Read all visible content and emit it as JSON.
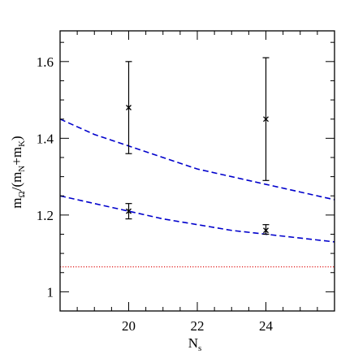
{
  "chart_data": {
    "type": "scatter",
    "title": "",
    "xlabel": {
      "main": "N",
      "sub": "s"
    },
    "ylabel": {
      "prefix": "m",
      "sub_q": "Ω",
      "mid": "/(m",
      "sub_n": "N",
      "plus": "+m",
      "sub_k": "K",
      "suffix": ")"
    },
    "xlim": [
      18,
      26
    ],
    "ylim": [
      0.95,
      1.68
    ],
    "xticks_major": [
      20,
      22,
      24
    ],
    "xticks_minor_step": 0.5,
    "yticks_major": [
      1.0,
      1.2,
      1.4,
      1.6
    ],
    "ytick_labels": [
      "1",
      "1.2",
      "1.4",
      "1.6"
    ],
    "yticks_minor_step": 0.05,
    "grid": false,
    "series": [
      {
        "marker": "x",
        "color": "#000000",
        "points": [
          {
            "x": 20,
            "y": 1.48,
            "ylow": 1.36,
            "yhigh": 1.6
          },
          {
            "x": 24,
            "y": 1.45,
            "ylow": 1.29,
            "yhigh": 1.61
          },
          {
            "x": 20,
            "y": 1.21,
            "ylow": 1.19,
            "yhigh": 1.23
          },
          {
            "x": 24,
            "y": 1.16,
            "ylow": 1.15,
            "yhigh": 1.175
          }
        ]
      }
    ],
    "curves": [
      {
        "style": "dashed",
        "color": "#0000cc",
        "x": [
          18,
          19,
          20,
          21,
          22,
          23,
          24,
          25,
          26
        ],
        "y": [
          1.45,
          1.41,
          1.38,
          1.35,
          1.32,
          1.3,
          1.28,
          1.26,
          1.24
        ]
      },
      {
        "style": "dashed",
        "color": "#0000cc",
        "x": [
          18,
          19,
          20,
          21,
          22,
          23,
          24,
          25,
          26
        ],
        "y": [
          1.25,
          1.23,
          1.21,
          1.19,
          1.175,
          1.16,
          1.15,
          1.14,
          1.13
        ]
      }
    ],
    "reference_lines": [
      {
        "style": "dotted",
        "color": "#dd0000",
        "y": 1.065
      }
    ]
  }
}
